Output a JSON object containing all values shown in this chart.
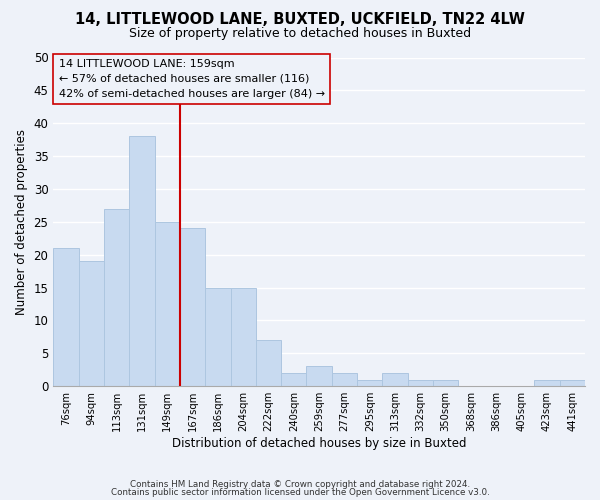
{
  "title": "14, LITTLEWOOD LANE, BUXTED, UCKFIELD, TN22 4LW",
  "subtitle": "Size of property relative to detached houses in Buxted",
  "xlabel": "Distribution of detached houses by size in Buxted",
  "ylabel": "Number of detached properties",
  "bar_color": "#c8daf0",
  "bar_edge_color": "#adc6e0",
  "bin_labels": [
    "76sqm",
    "94sqm",
    "113sqm",
    "131sqm",
    "149sqm",
    "167sqm",
    "186sqm",
    "204sqm",
    "222sqm",
    "240sqm",
    "259sqm",
    "277sqm",
    "295sqm",
    "313sqm",
    "332sqm",
    "350sqm",
    "368sqm",
    "386sqm",
    "405sqm",
    "423sqm",
    "441sqm"
  ],
  "values": [
    21,
    19,
    27,
    38,
    25,
    24,
    15,
    15,
    7,
    2,
    3,
    2,
    1,
    2,
    1,
    1,
    0,
    0,
    0,
    1,
    1
  ],
  "ylim": [
    0,
    50
  ],
  "yticks": [
    0,
    5,
    10,
    15,
    20,
    25,
    30,
    35,
    40,
    45,
    50
  ],
  "vline_color": "#cc0000",
  "vline_index": 4,
  "annotation_title": "14 LITTLEWOOD LANE: 159sqm",
  "annotation_line1": "← 57% of detached houses are smaller (116)",
  "annotation_line2": "42% of semi-detached houses are larger (84) →",
  "footer1": "Contains HM Land Registry data © Crown copyright and database right 2024.",
  "footer2": "Contains public sector information licensed under the Open Government Licence v3.0.",
  "background_color": "#eef2f9",
  "grid_color": "#ffffff"
}
